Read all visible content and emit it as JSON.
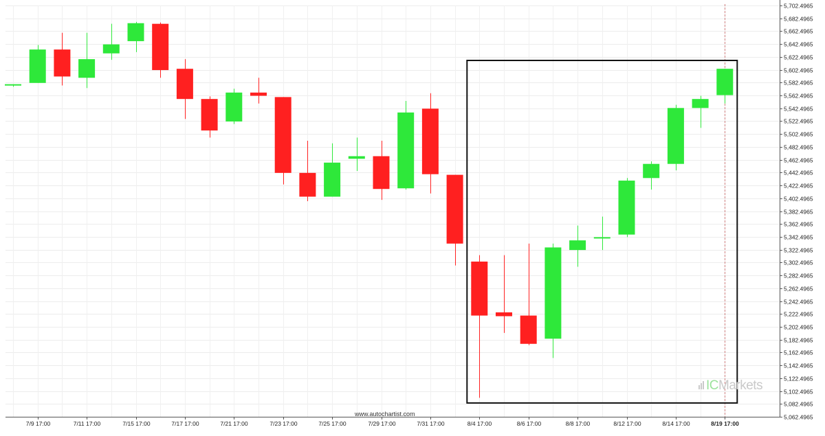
{
  "chart_data": {
    "type": "candlestick",
    "y_tick_labels": [
      "5,702.4965",
      "5,682.4965",
      "5,662.4965",
      "5,642.4965",
      "5,622.4965",
      "5,602.4965",
      "5,582.4965",
      "5,562.4965",
      "5,542.4965",
      "5,522.4965",
      "5,502.4965",
      "5,482.4965",
      "5,462.4965",
      "5,442.4965",
      "5,422.4965",
      "5,402.4965",
      "5,382.4965",
      "5,362.4965",
      "5,342.4965",
      "5,322.4965",
      "5,302.4965",
      "5,282.4965",
      "5,262.4965",
      "5,242.4965",
      "5,222.4965",
      "5,202.4965",
      "5,182.4965",
      "5,162.4965",
      "5,142.4965",
      "5,122.4965",
      "5,102.4965",
      "5,082.4965",
      "5,062.4965"
    ],
    "ylim": [
      5062.4965,
      5702.4965
    ],
    "x_tick_labels": [
      "7/9 17:00",
      "7/11 17:00",
      "7/15 17:00",
      "7/17 17:00",
      "7/21 17:00",
      "7/23 17:00",
      "7/25 17:00",
      "7/29 17:00",
      "7/31 17:00",
      "8/4 17:00",
      "8/6 17:00",
      "8/8 17:00",
      "8/12 17:00",
      "8/14 17:00",
      "8/19 17:00"
    ],
    "x_tick_candle_index": [
      1,
      3,
      5,
      7,
      9,
      11,
      13,
      15,
      17,
      19,
      21,
      23,
      25,
      27,
      29
    ],
    "highlighted_x_label": "8/19 17:00",
    "grid": true,
    "up_color": "#2ee83a",
    "down_color": "#ff2020",
    "candles": [
      {
        "open": 5578,
        "high": 5580,
        "low": 5576,
        "close": 5580
      },
      {
        "open": 5582,
        "high": 5641,
        "low": 5582,
        "close": 5634
      },
      {
        "open": 5634,
        "high": 5660,
        "low": 5578,
        "close": 5592
      },
      {
        "open": 5590,
        "high": 5660,
        "low": 5574,
        "close": 5619
      },
      {
        "open": 5628,
        "high": 5674,
        "low": 5618,
        "close": 5642
      },
      {
        "open": 5647,
        "high": 5677,
        "low": 5630,
        "close": 5675
      },
      {
        "open": 5674,
        "high": 5676,
        "low": 5590,
        "close": 5602
      },
      {
        "open": 5604,
        "high": 5619,
        "low": 5526,
        "close": 5557
      },
      {
        "open": 5557,
        "high": 5561,
        "low": 5497,
        "close": 5508
      },
      {
        "open": 5522,
        "high": 5573,
        "low": 5518,
        "close": 5567
      },
      {
        "open": 5567,
        "high": 5590,
        "low": 5550,
        "close": 5562
      },
      {
        "open": 5560,
        "high": 5560,
        "low": 5424,
        "close": 5442
      },
      {
        "open": 5442,
        "high": 5492,
        "low": 5398,
        "close": 5405
      },
      {
        "open": 5405,
        "high": 5488,
        "low": 5405,
        "close": 5458
      },
      {
        "open": 5464,
        "high": 5497,
        "low": 5445,
        "close": 5468
      },
      {
        "open": 5468,
        "high": 5492,
        "low": 5400,
        "close": 5417
      },
      {
        "open": 5418,
        "high": 5554,
        "low": 5416,
        "close": 5536
      },
      {
        "open": 5542,
        "high": 5566,
        "low": 5410,
        "close": 5440
      },
      {
        "open": 5439,
        "high": 5439,
        "low": 5298,
        "close": 5332
      },
      {
        "open": 5304,
        "high": 5314,
        "low": 5092,
        "close": 5220
      },
      {
        "open": 5225,
        "high": 5314,
        "low": 5193,
        "close": 5219
      },
      {
        "open": 5220,
        "high": 5332,
        "low": 5174,
        "close": 5176
      },
      {
        "open": 5184,
        "high": 5332,
        "low": 5154,
        "close": 5326
      },
      {
        "open": 5322,
        "high": 5360,
        "low": 5296,
        "close": 5337
      },
      {
        "open": 5342,
        "high": 5374,
        "low": 5322,
        "close": 5342
      },
      {
        "open": 5346,
        "high": 5434,
        "low": 5342,
        "close": 5430
      },
      {
        "open": 5434,
        "high": 5460,
        "low": 5416,
        "close": 5456
      },
      {
        "open": 5456,
        "high": 5548,
        "low": 5446,
        "close": 5543
      },
      {
        "open": 5543,
        "high": 5562,
        "low": 5512,
        "close": 5557
      },
      {
        "open": 5563,
        "high": 5604,
        "low": 5550,
        "close": 5604
      }
    ],
    "pattern_box": {
      "start_candle": 19,
      "end_candle": 29,
      "y_top": 5617,
      "y_bottom": 5084
    }
  },
  "footer": {
    "source": "www.autochartist.com"
  },
  "watermark": {
    "ic": "IC",
    "rest": "Markets"
  }
}
